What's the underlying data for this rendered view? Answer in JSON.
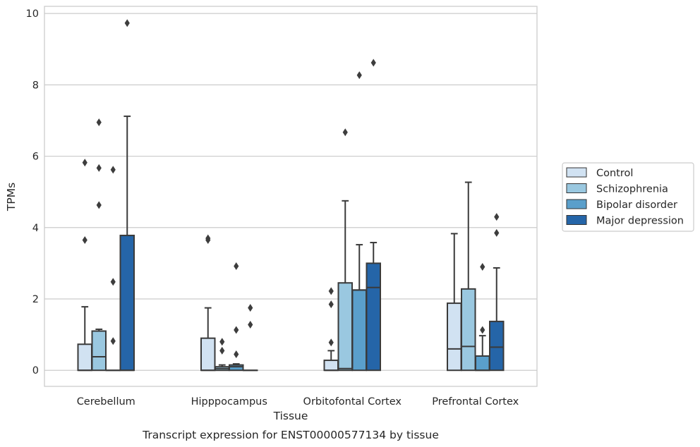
{
  "caption": "Transcript expression for ENST00000577134 by tissue",
  "chart_data": {
    "type": "box",
    "xlabel": "Tissue",
    "ylabel": "TPMs",
    "ylim": [
      -0.45,
      10.2
    ],
    "yticks": [
      0,
      2,
      4,
      6,
      8,
      10
    ],
    "grid": true,
    "legend_position": "right",
    "categories": [
      "Cerebellum",
      "Hipppocampus",
      "Orbitofontal Cortex",
      "Prefrontal Cortex"
    ],
    "series": [
      {
        "name": "Control",
        "color": "#d1e2f2",
        "boxes": [
          {
            "q1": 0,
            "median": 0,
            "q3": 0.73,
            "whisker_low": 0,
            "whisker_high": 1.78,
            "outliers": [
              3.65,
              5.82
            ]
          },
          {
            "q1": 0,
            "median": 0,
            "q3": 0.9,
            "whisker_low": 0,
            "whisker_high": 1.75,
            "outliers": [
              3.65,
              3.7
            ]
          },
          {
            "q1": 0,
            "median": 0,
            "q3": 0.28,
            "whisker_low": 0,
            "whisker_high": 0.55,
            "outliers": [
              0.78,
              1.85,
              2.22
            ]
          },
          {
            "q1": 0,
            "median": 0.6,
            "q3": 1.88,
            "whisker_low": 0,
            "whisker_high": 3.83,
            "outliers": []
          }
        ]
      },
      {
        "name": "Schizophrenia",
        "color": "#9ac8e0",
        "boxes": [
          {
            "q1": 0,
            "median": 0.38,
            "q3": 1.1,
            "whisker_low": 0,
            "whisker_high": 1.15,
            "outliers": [
              4.63,
              5.67,
              6.95
            ]
          },
          {
            "q1": 0,
            "median": 0.05,
            "q3": 0.1,
            "whisker_low": 0,
            "whisker_high": 0.15,
            "outliers": [
              0.55,
              0.8
            ]
          },
          {
            "q1": 0,
            "median": 0.05,
            "q3": 2.45,
            "whisker_low": 0,
            "whisker_high": 4.75,
            "outliers": [
              6.67
            ]
          },
          {
            "q1": 0,
            "median": 0.67,
            "q3": 2.28,
            "whisker_low": 0,
            "whisker_high": 5.27,
            "outliers": []
          }
        ]
      },
      {
        "name": "Bipolar disorder",
        "color": "#5a9fcb",
        "boxes": [
          {
            "q1": 0,
            "median": 0,
            "q3": 0,
            "whisker_low": 0,
            "whisker_high": 0,
            "outliers": [
              0.82,
              2.48,
              5.62
            ]
          },
          {
            "q1": 0,
            "median": 0.1,
            "q3": 0.15,
            "whisker_low": 0,
            "whisker_high": 0.18,
            "outliers": [
              0.45,
              1.13,
              2.92
            ]
          },
          {
            "q1": 0,
            "median": 2.25,
            "q3": 2.25,
            "whisker_low": 0,
            "whisker_high": 3.52,
            "outliers": [
              8.27
            ]
          },
          {
            "q1": 0,
            "median": 0,
            "q3": 0.4,
            "whisker_low": 0,
            "whisker_high": 0.97,
            "outliers": [
              1.13,
              2.9
            ]
          }
        ]
      },
      {
        "name": "Major depression",
        "color": "#2565a8",
        "boxes": [
          {
            "q1": 0,
            "median": 0,
            "q3": 3.78,
            "whisker_low": 0,
            "whisker_high": 7.12,
            "outliers": [
              9.73
            ]
          },
          {
            "q1": 0,
            "median": 0,
            "q3": 0,
            "whisker_low": 0,
            "whisker_high": 0,
            "outliers": [
              1.28,
              1.75
            ]
          },
          {
            "q1": 0,
            "median": 2.32,
            "q3": 3.0,
            "whisker_low": 0,
            "whisker_high": 3.58,
            "outliers": [
              8.62
            ]
          },
          {
            "q1": 0,
            "median": 0.65,
            "q3": 1.37,
            "whisker_low": 0,
            "whisker_high": 2.87,
            "outliers": [
              3.85,
              4.3
            ]
          }
        ]
      }
    ]
  }
}
